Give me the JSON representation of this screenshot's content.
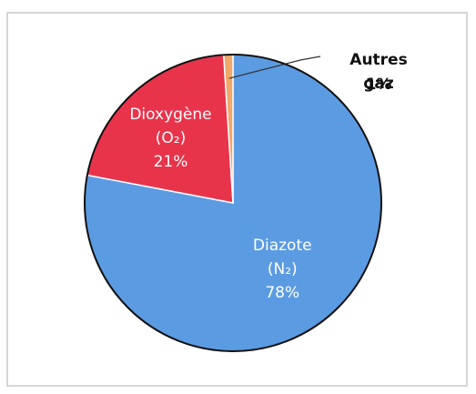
{
  "chart_data": {
    "type": "pie",
    "categories": [
      "Diazote (N₂)",
      "Dioxygène (O₂)",
      "Autres gaz"
    ],
    "values": [
      78,
      21,
      1
    ],
    "value_labels": [
      "78%",
      "21%",
      "1%"
    ],
    "colors": [
      "#5b9be2",
      "#e8344b",
      "#f0a76a"
    ]
  }
}
